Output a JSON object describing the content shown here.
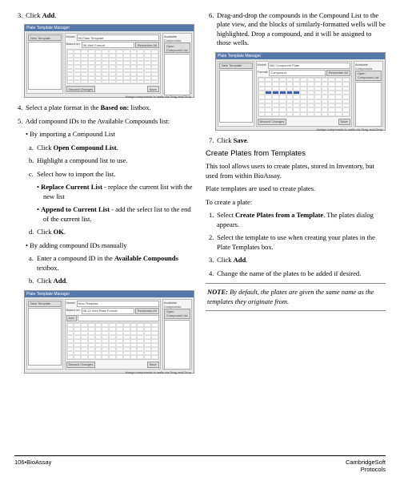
{
  "left": {
    "s3": {
      "n": "3.",
      "t": "Click ",
      "b": "Add",
      "t2": "."
    },
    "shot1": {
      "title": "Plate Template Manager",
      "model": "96 Plate Template",
      "basedon": "96-Well Format",
      "btn_open": "Open Compound List",
      "btn_renum": "Renumber All",
      "btn_discard": "Discard Changes",
      "btn_save": "Save",
      "foot": "Assign compounds to wells via Drag-and-Drop"
    },
    "s4": {
      "n": "4.",
      "t": "Select a plate format in the ",
      "b": "Based on:",
      "t2": " listbox."
    },
    "s5": {
      "n": "5.",
      "t": "Add compound IDs to the Available Compounds list:"
    },
    "bul1": "By importing a Compound List",
    "a": {
      "l": "a.",
      "t": "Click ",
      "b": "Open Compound List",
      "t2": "."
    },
    "b": {
      "l": "b.",
      "t": "Highlight a compound list to use."
    },
    "c": {
      "l": "c.",
      "t": "Select how to import the list."
    },
    "sb1": {
      "b": "Replace Current List",
      "t": " - replace the current list with the new list"
    },
    "sb2": {
      "b": "Append to Current List",
      "t": " - add the select list to the end of the current list."
    },
    "d": {
      "l": "d.",
      "t": "Click ",
      "b": "OK",
      "t2": "."
    },
    "bul2": "By adding compound IDs manually",
    "a2": {
      "l": "a.",
      "t": "Enter a compound ID in the ",
      "b": "Available Compounds",
      "t2": " textbox."
    },
    "b2": {
      "l": "b.",
      "t": "Click ",
      "b": "Add",
      "t2": "."
    },
    "shot2": {
      "title": "Plate Template Manager",
      "model": "New Template",
      "basedon": "96-14 Well Plate Format",
      "btn_add": "Add",
      "btn_open": "Open Compound List",
      "btn_renum": "Renumber All",
      "btn_discard": "Discard Changes",
      "btn_save": "Save",
      "foot": "Assign compounds to wells via Drag-and-Drop"
    }
  },
  "right": {
    "s6": {
      "n": "6.",
      "t": "Drag-and-drop the compounds in the Compound List to the plate view, and the blocks of similarly-formatted wells will be highlighted. Drop a compound, and it will be assigned to those wells."
    },
    "shot3": {
      "title": "Plate Template Manager",
      "model": "384 Compound Plate",
      "basedon": "Compound",
      "btn_open": "Open Compound List",
      "btn_renum": "Renumber All",
      "btn_discard": "Discard Changes",
      "btn_save": "Save",
      "foot": "Assign compounds to wells via Drag-and-Drop"
    },
    "s7": {
      "n": "7.",
      "t": "Click ",
      "b": "Save",
      "t2": "."
    },
    "heading": "Create Plates from Templates",
    "p1": "This tool allows users to create plates, stored in Inventory, but used from within BioAssay.",
    "p2": "Plate templates are used to create plates.",
    "p3": "To create a plate:",
    "r1": {
      "n": "1.",
      "t": "Select ",
      "b": "Create Plates from a Template",
      "t2": ". The plates dialog appears."
    },
    "r2": {
      "n": "2.",
      "t": "Select the template to use when creating your plates in the Plate Templates box."
    },
    "r3": {
      "n": "3.",
      "t": "Click ",
      "b": "Add",
      "t2": "."
    },
    "r4": {
      "n": "4.",
      "t": "Change the name of the plates to be added if desired."
    },
    "note": {
      "label": "NOTE: ",
      "t": "By default, the plates are given the same name as the templates they originate from."
    }
  },
  "footer": {
    "page": "106",
    "section": "BioAssay",
    "company": "CambridgeSoft",
    "sub": "Protocols"
  }
}
